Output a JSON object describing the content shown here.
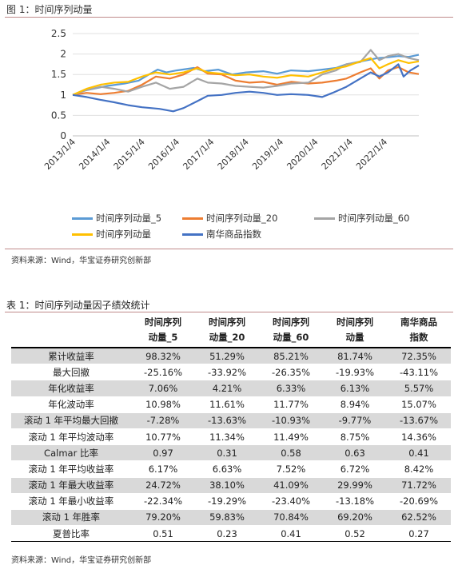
{
  "figure": {
    "caption": "图 1：时间序列动量",
    "source": "资料来源：Wind，华宝证券研究创新部"
  },
  "chart_data": {
    "type": "line",
    "x_ticks": [
      "2013/1/4",
      "2014/1/4",
      "2015/1/4",
      "2016/1/4",
      "2017/1/4",
      "2018/1/4",
      "2019/1/4",
      "2020/1/4",
      "2021/1/4",
      "2022/1/4"
    ],
    "y_ticks": [
      "0",
      "0.5",
      "1",
      "1.5",
      "2",
      "2.5"
    ],
    "ylim": [
      0,
      2.5
    ],
    "x_range": [
      2013.0,
      2022.99
    ],
    "series": [
      {
        "name": "时间序列动量_5",
        "color": "#5b9bd5",
        "points": [
          [
            2013.0,
            1.0
          ],
          [
            2013.3,
            1.1
          ],
          [
            2013.6,
            1.15
          ],
          [
            2014.0,
            1.22
          ],
          [
            2014.5,
            1.28
          ],
          [
            2014.9,
            1.35
          ],
          [
            2015.2,
            1.5
          ],
          [
            2015.45,
            1.62
          ],
          [
            2015.7,
            1.55
          ],
          [
            2016.0,
            1.6
          ],
          [
            2016.5,
            1.66
          ],
          [
            2016.8,
            1.58
          ],
          [
            2017.2,
            1.62
          ],
          [
            2017.6,
            1.5
          ],
          [
            2018.0,
            1.55
          ],
          [
            2018.5,
            1.58
          ],
          [
            2018.9,
            1.52
          ],
          [
            2019.3,
            1.6
          ],
          [
            2019.8,
            1.58
          ],
          [
            2020.2,
            1.62
          ],
          [
            2020.6,
            1.66
          ],
          [
            2020.9,
            1.75
          ],
          [
            2021.2,
            1.8
          ],
          [
            2021.5,
            1.85
          ],
          [
            2021.8,
            1.9
          ],
          [
            2022.1,
            1.92
          ],
          [
            2022.4,
            1.95
          ],
          [
            2022.7,
            1.93
          ],
          [
            2022.99,
            1.98
          ]
        ]
      },
      {
        "name": "时间序列动量_20",
        "color": "#ed7d31",
        "points": [
          [
            2013.0,
            1.0
          ],
          [
            2013.4,
            1.05
          ],
          [
            2013.8,
            1.02
          ],
          [
            2014.2,
            1.05
          ],
          [
            2014.6,
            1.1
          ],
          [
            2015.0,
            1.25
          ],
          [
            2015.4,
            1.45
          ],
          [
            2015.8,
            1.4
          ],
          [
            2016.2,
            1.5
          ],
          [
            2016.6,
            1.68
          ],
          [
            2016.9,
            1.52
          ],
          [
            2017.3,
            1.5
          ],
          [
            2017.7,
            1.35
          ],
          [
            2018.1,
            1.3
          ],
          [
            2018.5,
            1.32
          ],
          [
            2018.9,
            1.25
          ],
          [
            2019.3,
            1.32
          ],
          [
            2019.8,
            1.28
          ],
          [
            2020.2,
            1.3
          ],
          [
            2020.6,
            1.35
          ],
          [
            2020.9,
            1.4
          ],
          [
            2021.3,
            1.55
          ],
          [
            2021.6,
            1.65
          ],
          [
            2021.85,
            1.4
          ],
          [
            2022.1,
            1.6
          ],
          [
            2022.4,
            1.68
          ],
          [
            2022.7,
            1.55
          ],
          [
            2022.99,
            1.51
          ]
        ]
      },
      {
        "name": "时间序列动量_60",
        "color": "#a5a5a5",
        "points": [
          [
            2013.0,
            1.0
          ],
          [
            2013.4,
            1.12
          ],
          [
            2013.8,
            1.2
          ],
          [
            2014.2,
            1.15
          ],
          [
            2014.6,
            1.08
          ],
          [
            2015.0,
            1.2
          ],
          [
            2015.4,
            1.3
          ],
          [
            2015.8,
            1.15
          ],
          [
            2016.2,
            1.2
          ],
          [
            2016.6,
            1.4
          ],
          [
            2016.9,
            1.3
          ],
          [
            2017.3,
            1.28
          ],
          [
            2017.7,
            1.22
          ],
          [
            2018.1,
            1.2
          ],
          [
            2018.5,
            1.18
          ],
          [
            2018.9,
            1.22
          ],
          [
            2019.3,
            1.28
          ],
          [
            2019.8,
            1.3
          ],
          [
            2020.2,
            1.5
          ],
          [
            2020.6,
            1.6
          ],
          [
            2020.9,
            1.75
          ],
          [
            2021.3,
            1.8
          ],
          [
            2021.6,
            2.1
          ],
          [
            2021.85,
            1.85
          ],
          [
            2022.1,
            1.95
          ],
          [
            2022.4,
            2.0
          ],
          [
            2022.7,
            1.9
          ],
          [
            2022.99,
            1.85
          ]
        ]
      },
      {
        "name": "时间序列动量",
        "color": "#ffc000",
        "points": [
          [
            2013.0,
            1.0
          ],
          [
            2013.4,
            1.15
          ],
          [
            2013.8,
            1.25
          ],
          [
            2014.2,
            1.3
          ],
          [
            2014.6,
            1.32
          ],
          [
            2015.0,
            1.45
          ],
          [
            2015.4,
            1.55
          ],
          [
            2015.8,
            1.5
          ],
          [
            2016.2,
            1.55
          ],
          [
            2016.6,
            1.65
          ],
          [
            2016.9,
            1.55
          ],
          [
            2017.3,
            1.52
          ],
          [
            2017.7,
            1.48
          ],
          [
            2018.1,
            1.5
          ],
          [
            2018.5,
            1.45
          ],
          [
            2018.9,
            1.42
          ],
          [
            2019.3,
            1.48
          ],
          [
            2019.8,
            1.45
          ],
          [
            2020.2,
            1.55
          ],
          [
            2020.6,
            1.65
          ],
          [
            2020.9,
            1.7
          ],
          [
            2021.3,
            1.82
          ],
          [
            2021.6,
            1.9
          ],
          [
            2021.85,
            1.65
          ],
          [
            2022.1,
            1.75
          ],
          [
            2022.4,
            1.85
          ],
          [
            2022.7,
            1.78
          ],
          [
            2022.99,
            1.82
          ]
        ]
      },
      {
        "name": "南华商品指数",
        "color": "#4472c4",
        "points": [
          [
            2013.0,
            1.0
          ],
          [
            2013.4,
            0.95
          ],
          [
            2013.8,
            0.88
          ],
          [
            2014.2,
            0.82
          ],
          [
            2014.6,
            0.75
          ],
          [
            2015.0,
            0.7
          ],
          [
            2015.5,
            0.66
          ],
          [
            2015.9,
            0.6
          ],
          [
            2016.2,
            0.68
          ],
          [
            2016.6,
            0.85
          ],
          [
            2016.9,
            0.98
          ],
          [
            2017.3,
            1.0
          ],
          [
            2017.7,
            1.05
          ],
          [
            2018.1,
            1.08
          ],
          [
            2018.5,
            1.05
          ],
          [
            2018.9,
            1.0
          ],
          [
            2019.3,
            1.02
          ],
          [
            2019.8,
            1.0
          ],
          [
            2020.2,
            0.95
          ],
          [
            2020.5,
            1.05
          ],
          [
            2020.9,
            1.2
          ],
          [
            2021.3,
            1.4
          ],
          [
            2021.6,
            1.55
          ],
          [
            2021.85,
            1.45
          ],
          [
            2022.1,
            1.55
          ],
          [
            2022.4,
            1.75
          ],
          [
            2022.55,
            1.45
          ],
          [
            2022.75,
            1.6
          ],
          [
            2022.99,
            1.72
          ]
        ]
      }
    ]
  },
  "table": {
    "caption": "表 1：时间序列动量因子绩效统计",
    "headers": [
      {
        "l1": "时间序列",
        "l2": "动量_5"
      },
      {
        "l1": "时间序列",
        "l2": "动量_20"
      },
      {
        "l1": "时间序列",
        "l2": "动量_60"
      },
      {
        "l1": "时间序列",
        "l2": "动量"
      },
      {
        "l1": "南华商品",
        "l2": "指数"
      }
    ],
    "rows": [
      {
        "label": "累计收益率",
        "values": [
          "98.32%",
          "51.29%",
          "85.21%",
          "81.74%",
          "72.35%"
        ]
      },
      {
        "label": "最大回撤",
        "values": [
          "-25.16%",
          "-33.92%",
          "-26.35%",
          "-19.93%",
          "-43.11%"
        ]
      },
      {
        "label": "年化收益率",
        "values": [
          "7.06%",
          "4.21%",
          "6.33%",
          "6.13%",
          "5.57%"
        ]
      },
      {
        "label": "年化波动率",
        "values": [
          "10.98%",
          "11.61%",
          "11.77%",
          "8.94%",
          "15.07%"
        ]
      },
      {
        "label": "滚动 1 年平均最大回撤",
        "values": [
          "-7.28%",
          "-13.63%",
          "-10.93%",
          "-9.77%",
          "-13.67%"
        ]
      },
      {
        "label": "滚动 1 年平均波动率",
        "values": [
          "10.77%",
          "11.34%",
          "11.49%",
          "8.75%",
          "14.36%"
        ]
      },
      {
        "label": "Calmar 比率",
        "values": [
          "0.97",
          "0.31",
          "0.58",
          "0.63",
          "0.41"
        ]
      },
      {
        "label": "滚动 1 年平均收益率",
        "values": [
          "6.17%",
          "6.63%",
          "7.52%",
          "6.72%",
          "8.42%"
        ]
      },
      {
        "label": "滚动 1 年最大收益率",
        "values": [
          "24.72%",
          "38.10%",
          "41.09%",
          "29.99%",
          "71.72%"
        ]
      },
      {
        "label": "滚动 1 年最小收益率",
        "values": [
          "-22.34%",
          "-19.29%",
          "-23.40%",
          "-13.18%",
          "-20.69%"
        ]
      },
      {
        "label": "滚动 1 年胜率",
        "values": [
          "79.20%",
          "59.83%",
          "70.84%",
          "69.20%",
          "62.52%"
        ]
      },
      {
        "label": "夏普比率",
        "values": [
          "0.51",
          "0.23",
          "0.41",
          "0.52",
          "0.27"
        ]
      }
    ],
    "source": "资料来源：Wind，华宝证券研究创新部"
  }
}
